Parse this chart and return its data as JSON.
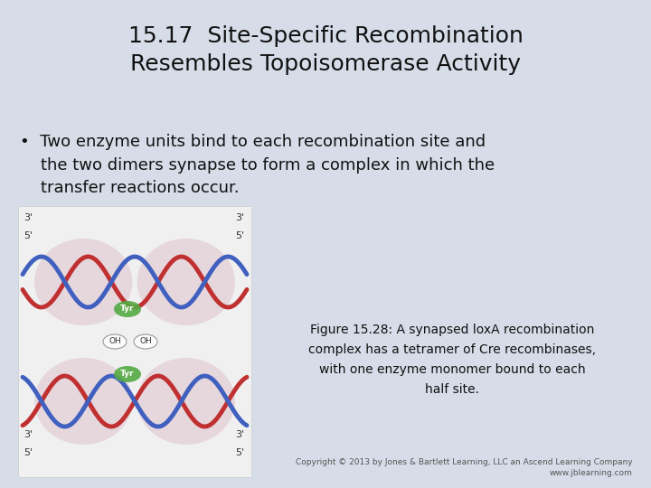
{
  "background_color": "#d6dde8",
  "title_line1": "15.17  Site-Specific Recombination",
  "title_line2": "Resembles Topoisomerase Activity",
  "title_fontsize": 18,
  "title_color": "#111111",
  "bullet_fontsize": 13,
  "bullet_color": "#111111",
  "caption_fontsize": 10,
  "caption_color": "#111111",
  "copyright_text": "Copyright © 2013 by Jones & Bartlett Learning, LLC an Ascend Learning Company\nwww.jblearning.com",
  "copyright_fontsize": 6.5,
  "copyright_color": "#555555"
}
